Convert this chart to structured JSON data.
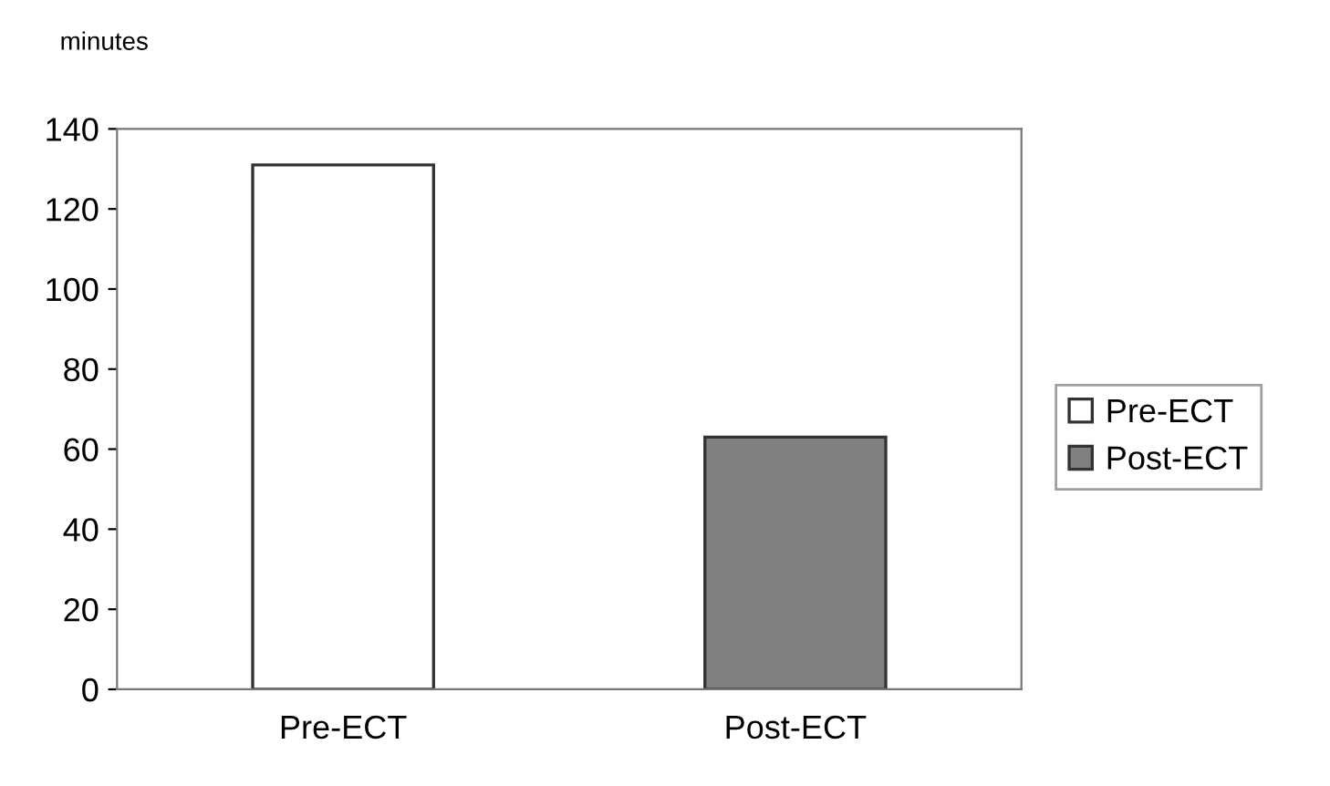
{
  "chart_data": {
    "type": "bar",
    "ylabel": "minutes",
    "categories": [
      "Pre-ECT",
      "Post-ECT"
    ],
    "series": [
      {
        "name": "Pre-ECT",
        "color": "#ffffff",
        "values": [
          131,
          null
        ]
      },
      {
        "name": "Post-ECT",
        "color": "#808080",
        "values": [
          null,
          63
        ]
      }
    ],
    "ylim": [
      0,
      140
    ],
    "yticks": [
      0,
      20,
      40,
      60,
      80,
      100,
      120,
      140
    ],
    "grid": false,
    "legend": "right"
  }
}
